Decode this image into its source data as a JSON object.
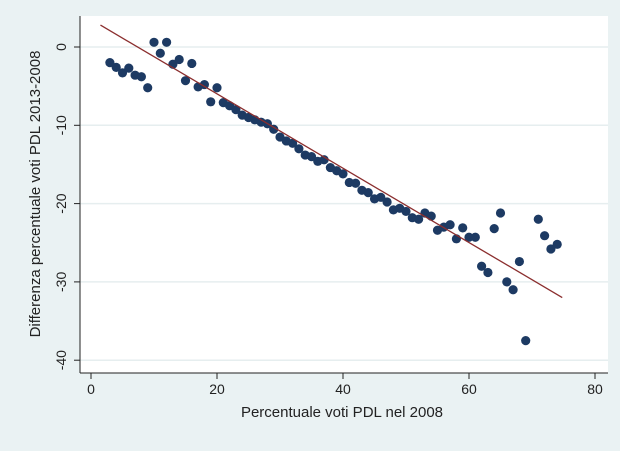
{
  "chart_data": {
    "type": "scatter",
    "title": "",
    "xlabel": "Percentuale voti PDL nel 2008",
    "ylabel": "Differenza percentuale voti PDL 2013-2008",
    "xlim": [
      0,
      80
    ],
    "ylim": [
      -40,
      0
    ],
    "xticks": [
      "0",
      "20",
      "40",
      "60",
      "80"
    ],
    "yticks": [
      "0",
      "-10",
      "-20",
      "-30",
      "-40"
    ],
    "grid": true,
    "legend": "none",
    "colors": {
      "points": "#1d3a63",
      "fit_line": "#8b2e2e",
      "background": "#eaf2f3"
    },
    "points": [
      [
        3,
        -2
      ],
      [
        4,
        -2.6
      ],
      [
        5,
        -3.3
      ],
      [
        6,
        -2.7
      ],
      [
        7,
        -3.6
      ],
      [
        8,
        -3.8
      ],
      [
        9,
        -5.2
      ],
      [
        10,
        0.6
      ],
      [
        11,
        -0.8
      ],
      [
        12,
        0.6
      ],
      [
        13,
        -2.2
      ],
      [
        14,
        -1.6
      ],
      [
        15,
        -4.3
      ],
      [
        16,
        -2.1
      ],
      [
        17,
        -5.1
      ],
      [
        18,
        -4.8
      ],
      [
        19,
        -7
      ],
      [
        20,
        -5.2
      ],
      [
        21,
        -7.1
      ],
      [
        22,
        -7.5
      ],
      [
        23,
        -8
      ],
      [
        24,
        -8.7
      ],
      [
        25,
        -9
      ],
      [
        26,
        -9.3
      ],
      [
        27,
        -9.6
      ],
      [
        28,
        -9.8
      ],
      [
        29,
        -10.5
      ],
      [
        30,
        -11.5
      ],
      [
        31,
        -12
      ],
      [
        32,
        -12.3
      ],
      [
        33,
        -13
      ],
      [
        34,
        -13.8
      ],
      [
        35,
        -14
      ],
      [
        36,
        -14.6
      ],
      [
        37,
        -14.4
      ],
      [
        38,
        -15.4
      ],
      [
        39,
        -15.8
      ],
      [
        40,
        -16.2
      ],
      [
        41,
        -17.3
      ],
      [
        42,
        -17.4
      ],
      [
        43,
        -18.3
      ],
      [
        44,
        -18.6
      ],
      [
        45,
        -19.4
      ],
      [
        46,
        -19.2
      ],
      [
        47,
        -19.8
      ],
      [
        48,
        -20.8
      ],
      [
        49,
        -20.6
      ],
      [
        50,
        -21
      ],
      [
        51,
        -21.8
      ],
      [
        52,
        -22
      ],
      [
        53,
        -21.2
      ],
      [
        54,
        -21.6
      ],
      [
        55,
        -23.4
      ],
      [
        56,
        -23
      ],
      [
        57,
        -22.7
      ],
      [
        58,
        -24.5
      ],
      [
        59,
        -23.1
      ],
      [
        60,
        -24.3
      ],
      [
        61,
        -24.3
      ],
      [
        62,
        -28
      ],
      [
        63,
        -28.8
      ],
      [
        64,
        -23.2
      ],
      [
        65,
        -21.2
      ],
      [
        66,
        -30
      ],
      [
        67,
        -31
      ],
      [
        68,
        -27.4
      ],
      [
        69,
        -37.5
      ],
      [
        71,
        -22
      ],
      [
        72,
        -24.1
      ],
      [
        73,
        -25.8
      ],
      [
        74,
        -25.2
      ]
    ],
    "fit_line": {
      "x": [
        1.5,
        74.8
      ],
      "y": [
        2.8,
        -32
      ]
    }
  }
}
